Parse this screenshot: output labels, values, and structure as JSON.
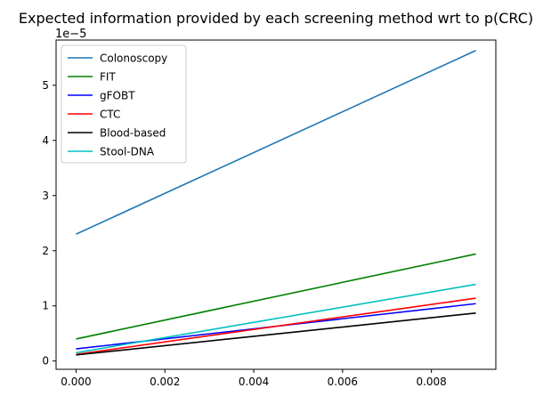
{
  "chart_data": {
    "type": "line",
    "title": "Expected information provided by each screening method wrt to p(CRC)",
    "xlabel": "",
    "ylabel": "",
    "y_offset_label": "1e−5",
    "y_scale_multiplier": 1e-05,
    "xlim": [
      -0.00045,
      0.00945
    ],
    "ylim": [
      -0.15,
      5.82
    ],
    "x_ticks": [
      0,
      0.002,
      0.004,
      0.006,
      0.008
    ],
    "x_tick_labels": [
      "0.000",
      "0.002",
      "0.004",
      "0.006",
      "0.008"
    ],
    "y_ticks": [
      0,
      1,
      2,
      3,
      4,
      5
    ],
    "y_tick_labels": [
      "0",
      "1",
      "2",
      "3",
      "4",
      "5"
    ],
    "grid": false,
    "legend_position": "top-left",
    "x": [
      0,
      0.009
    ],
    "series": [
      {
        "name": "Colonoscopy",
        "color": "#1f77b4",
        "values": [
          2.3,
          5.63
        ]
      },
      {
        "name": "FIT",
        "color": "#008000",
        "values": [
          0.4,
          1.94
        ]
      },
      {
        "name": "gFOBT",
        "color": "#0000ff",
        "values": [
          0.22,
          1.04
        ]
      },
      {
        "name": "CTC",
        "color": "#ff0000",
        "values": [
          0.12,
          1.14
        ]
      },
      {
        "name": "Blood-based",
        "color": "#000000",
        "values": [
          0.11,
          0.87
        ]
      },
      {
        "name": "Stool-DNA",
        "color": "#00bfbf",
        "values": [
          0.15,
          1.39
        ]
      }
    ]
  }
}
